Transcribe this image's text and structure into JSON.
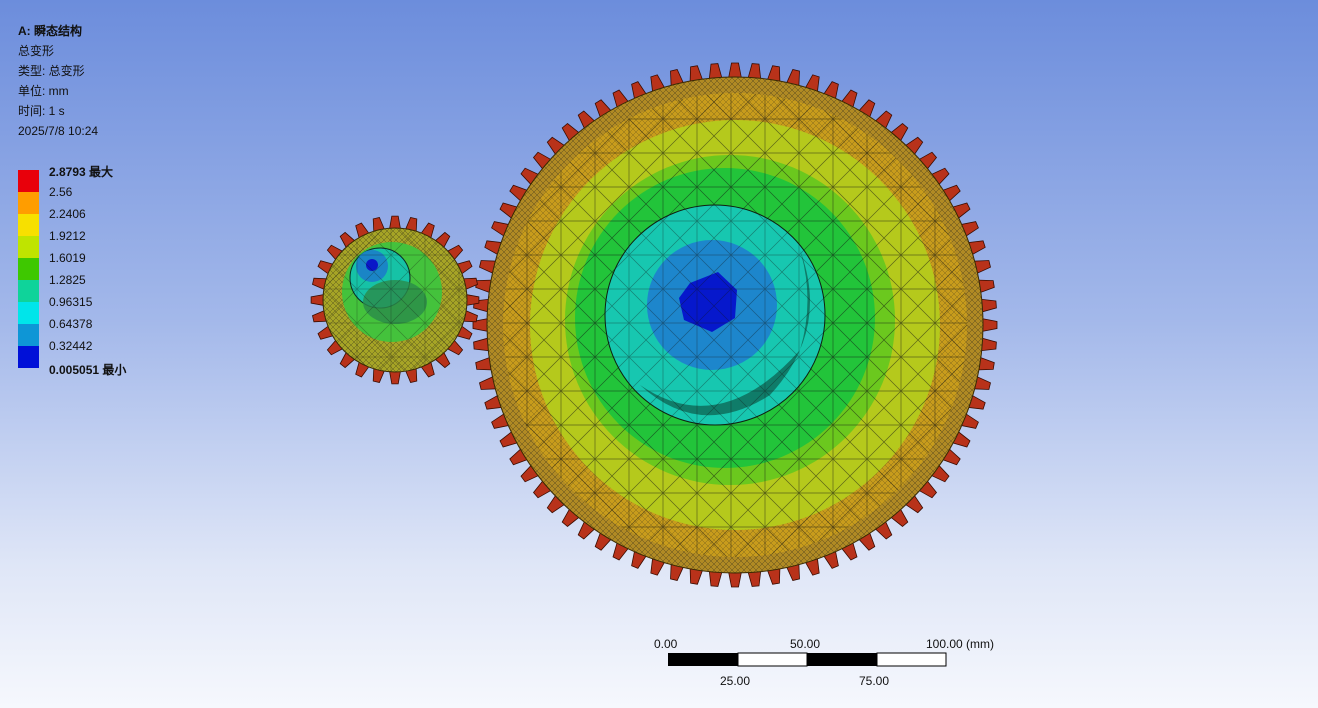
{
  "info": {
    "title": "A: 瞬态结构",
    "result_name": "总变形",
    "type_line": "类型: 总变形",
    "unit_line": "单位: mm",
    "time_line": "时间: 1 s",
    "date_line": "2025/7/8 10:24"
  },
  "legend": {
    "max_label": "2.8793 最大",
    "min_label": "0.005051 最小",
    "levels": [
      "2.8793 最大",
      "2.56",
      "2.2406",
      "1.9212",
      "1.6019",
      "1.2825",
      "0.96315",
      "0.64378",
      "0.32442",
      "0.005051 最小"
    ],
    "colors": [
      "#e8000b",
      "#ff9d00",
      "#f7e000",
      "#bfe400",
      "#3ec800",
      "#0fd39a",
      "#00e5ea",
      "#0e96d6",
      "#0010d8"
    ]
  },
  "scale_bar": {
    "top_labels": [
      "0.00",
      "50.00",
      "100.00 (mm)"
    ],
    "bottom_labels": [
      "25.00",
      "75.00"
    ]
  }
}
